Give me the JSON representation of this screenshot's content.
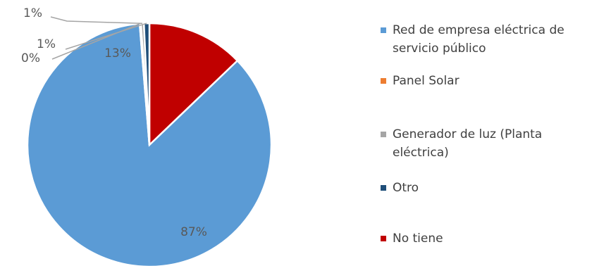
{
  "chart_data": {
    "type": "pie",
    "categories": [
      "Red de empresa eléctrica de servicio público",
      "Panel Solar",
      "Generador de luz (Planta eléctrica)",
      "Otro",
      "No tiene"
    ],
    "values": [
      87,
      0,
      1,
      1,
      13
    ],
    "data_labels": [
      "87%",
      "0%",
      "1%",
      "1%",
      "13%"
    ],
    "colors": [
      "#5B9BD5",
      "#ED7D31",
      "#A5A5A5",
      "#1F4E79",
      "#C00000"
    ],
    "legend_position": "right",
    "title": "",
    "start_angle": "12 o'clock",
    "direction": "clockwise"
  }
}
